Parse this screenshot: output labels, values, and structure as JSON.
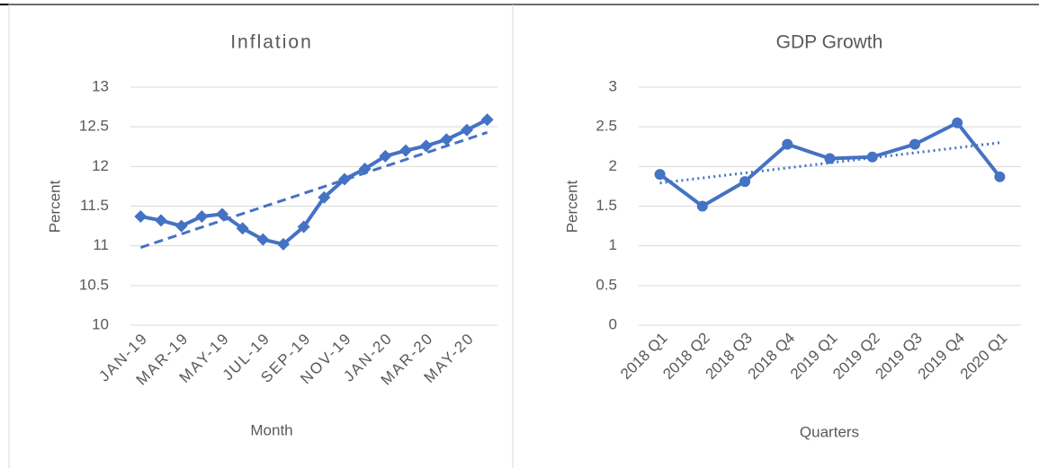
{
  "chart_data": [
    {
      "type": "line",
      "title": "Inflation",
      "x_label": "Month",
      "y_label": "Percent",
      "categories": [
        "JAN-19",
        null,
        "MAR-19",
        null,
        "MAY-19",
        null,
        "JUL-19",
        null,
        "SEP-19",
        null,
        "NOV-19",
        null,
        "JAN-20",
        null,
        "MAR-20",
        null,
        "MAY-20",
        null
      ],
      "series": [
        {
          "color": "#4472c4",
          "marker": "diamond",
          "trendline": "dashed",
          "values": [
            11.37,
            11.32,
            11.25,
            11.37,
            11.4,
            11.22,
            11.08,
            11.02,
            11.24,
            11.61,
            11.84,
            11.97,
            12.13,
            12.2,
            12.26,
            12.34,
            12.46,
            12.59
          ]
        }
      ],
      "ylim": [
        10,
        13
      ],
      "yticks": [
        10,
        10.5,
        11,
        11.5,
        12,
        12.5,
        13
      ],
      "grid": true
    },
    {
      "type": "line",
      "title": "GDP Growth",
      "x_label": "Quarters",
      "y_label": "Percent",
      "categories": [
        "2018 Q1",
        "2018 Q2",
        "2018 Q3",
        "2018 Q4",
        "2019 Q1",
        "2019 Q2",
        "2019 Q3",
        "2019 Q4",
        "2020 Q1"
      ],
      "series": [
        {
          "color": "#4472c4",
          "marker": "circle",
          "trendline": "dotted",
          "values": [
            1.9,
            1.5,
            1.81,
            2.28,
            2.1,
            2.12,
            2.28,
            2.55,
            1.87
          ]
        }
      ],
      "ylim": [
        0,
        3
      ],
      "yticks": [
        0,
        0.5,
        1,
        1.5,
        2,
        2.5,
        3
      ],
      "grid": true
    }
  ]
}
